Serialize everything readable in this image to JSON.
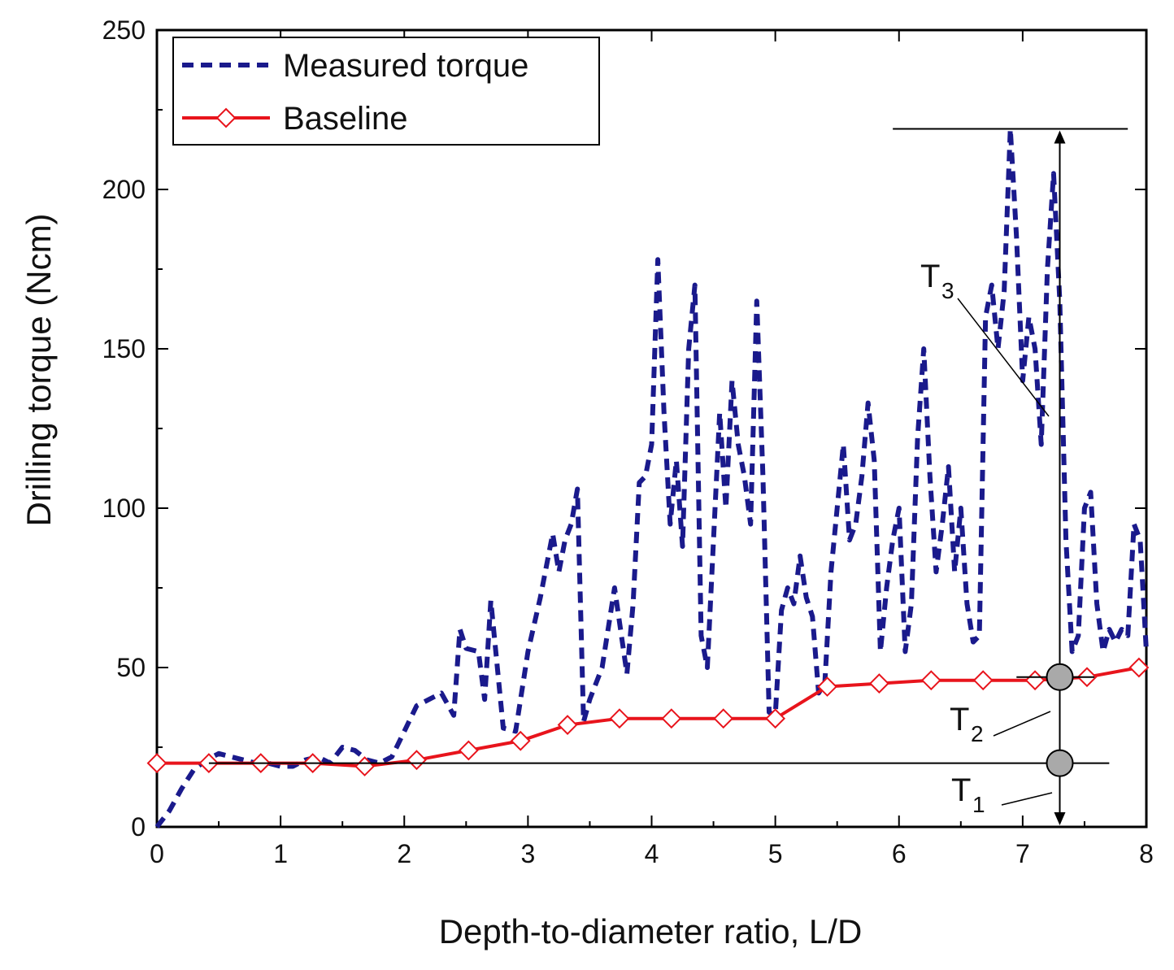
{
  "chart_data": {
    "type": "line",
    "xlabel": "Depth-to-diameter ratio, L/D",
    "ylabel": "Drilling torque (Ncm)",
    "xlim": [
      0,
      8
    ],
    "ylim": [
      0,
      250
    ],
    "xticks": [
      "0",
      "1",
      "2",
      "3",
      "4",
      "5",
      "6",
      "7",
      "8"
    ],
    "yticks": [
      "0",
      "50",
      "100",
      "150",
      "200",
      "250"
    ],
    "grid": false,
    "legend_position": "top-left",
    "series": [
      {
        "name": "Measured torque",
        "style": "dashed",
        "color": "#1a1a8c",
        "x": [
          0,
          0.1,
          0.2,
          0.3,
          0.4,
          0.5,
          0.6,
          0.7,
          0.8,
          0.9,
          1.0,
          1.1,
          1.2,
          1.3,
          1.4,
          1.5,
          1.6,
          1.7,
          1.8,
          1.9,
          2.0,
          2.1,
          2.2,
          2.3,
          2.4,
          2.45,
          2.5,
          2.6,
          2.65,
          2.7,
          2.8,
          2.9,
          3.0,
          3.1,
          3.2,
          3.25,
          3.3,
          3.35,
          3.4,
          3.45,
          3.5,
          3.6,
          3.7,
          3.8,
          3.85,
          3.9,
          3.95,
          4.0,
          4.05,
          4.1,
          4.15,
          4.2,
          4.25,
          4.3,
          4.35,
          4.4,
          4.45,
          4.5,
          4.55,
          4.6,
          4.65,
          4.7,
          4.75,
          4.8,
          4.85,
          4.9,
          4.95,
          5.0,
          5.05,
          5.1,
          5.15,
          5.2,
          5.25,
          5.3,
          5.35,
          5.4,
          5.45,
          5.5,
          5.55,
          5.6,
          5.65,
          5.7,
          5.75,
          5.8,
          5.85,
          5.9,
          5.95,
          6.0,
          6.05,
          6.1,
          6.15,
          6.2,
          6.25,
          6.3,
          6.35,
          6.4,
          6.45,
          6.5,
          6.55,
          6.6,
          6.65,
          6.7,
          6.75,
          6.8,
          6.85,
          6.9,
          6.95,
          7.0,
          7.05,
          7.1,
          7.15,
          7.2,
          7.25,
          7.3,
          7.35,
          7.4,
          7.45,
          7.5,
          7.55,
          7.6,
          7.65,
          7.7,
          7.75,
          7.8,
          7.85,
          7.9,
          7.95,
          8.0
        ],
        "y": [
          0,
          5,
          12,
          18,
          21,
          23,
          22,
          21,
          20,
          20,
          19,
          19,
          21,
          22,
          20,
          25,
          24,
          21,
          20,
          22,
          30,
          38,
          40,
          42,
          35,
          62,
          56,
          55,
          40,
          71,
          31,
          30,
          55,
          72,
          92,
          80,
          90,
          95,
          106,
          33,
          40,
          50,
          75,
          48,
          70,
          108,
          110,
          120,
          178,
          130,
          95,
          115,
          88,
          150,
          170,
          60,
          50,
          90,
          130,
          100,
          140,
          120,
          110,
          95,
          165,
          110,
          36,
          35,
          68,
          75,
          70,
          85,
          72,
          66,
          42,
          45,
          80,
          100,
          120,
          90,
          95,
          110,
          133,
          115,
          55,
          75,
          90,
          100,
          55,
          70,
          122,
          150,
          110,
          80,
          95,
          113,
          80,
          100,
          70,
          58,
          60,
          160,
          170,
          150,
          168,
          219,
          185,
          140,
          160,
          150,
          120,
          175,
          205,
          165,
          90,
          55,
          60,
          100,
          105,
          70,
          55,
          62,
          58,
          62,
          60,
          95,
          90,
          55
        ]
      },
      {
        "name": "Baseline",
        "style": "solid",
        "marker": "open-diamond",
        "color": "#e8141c",
        "x": [
          0.0,
          0.42,
          0.84,
          1.26,
          1.68,
          2.1,
          2.52,
          2.94,
          3.32,
          3.74,
          4.16,
          4.58,
          5.0,
          5.42,
          5.84,
          6.26,
          6.68,
          7.1,
          7.52,
          7.94
        ],
        "y": [
          20,
          20,
          20,
          20,
          19,
          21,
          24,
          27,
          32,
          34,
          34,
          34,
          34,
          44,
          45,
          46,
          46,
          46,
          47,
          50
        ]
      }
    ],
    "annotations": [
      {
        "label": "T",
        "subscript": "1",
        "x": 7.3,
        "y": 20
      },
      {
        "label": "T",
        "subscript": "2",
        "x": 7.3,
        "y": 47
      },
      {
        "label": "T",
        "subscript": "3",
        "x": 7.3,
        "y": 219
      }
    ]
  }
}
